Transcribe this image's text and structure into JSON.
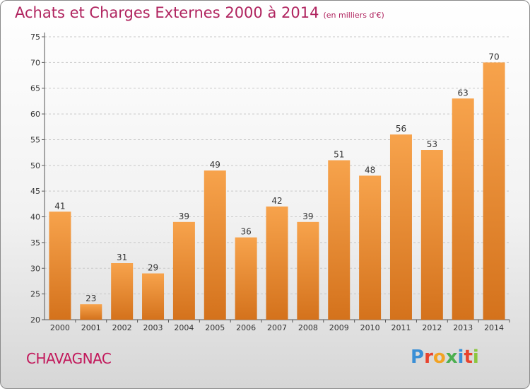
{
  "title": "Achats et Charges Externes 2000 à 2014",
  "subtitle": "(en milliers d'€)",
  "commune": "CHAVAGNAC",
  "logo": {
    "letters": [
      "P",
      "r",
      "o",
      "x",
      "i",
      "t",
      "i"
    ],
    "colors": [
      "#3a8fd6",
      "#e8432e",
      "#f2a324",
      "#4caf50",
      "#3a8fd6",
      "#e8432e",
      "#8cc63f"
    ]
  },
  "colors": {
    "bar_top": "#f7a34c",
    "bar_bottom": "#d4721c",
    "title": "#b0245f"
  },
  "chart_data": {
    "type": "bar",
    "categories": [
      "2000",
      "2001",
      "2002",
      "2003",
      "2004",
      "2005",
      "2006",
      "2007",
      "2008",
      "2009",
      "2010",
      "2011",
      "2012",
      "2013",
      "2014"
    ],
    "values": [
      41,
      23,
      31,
      29,
      39,
      49,
      36,
      42,
      39,
      51,
      48,
      56,
      53,
      63,
      70
    ],
    "ylim": [
      20,
      75
    ],
    "yticks": [
      20,
      25,
      30,
      35,
      40,
      45,
      50,
      55,
      60,
      65,
      70,
      75
    ],
    "grid": true
  }
}
